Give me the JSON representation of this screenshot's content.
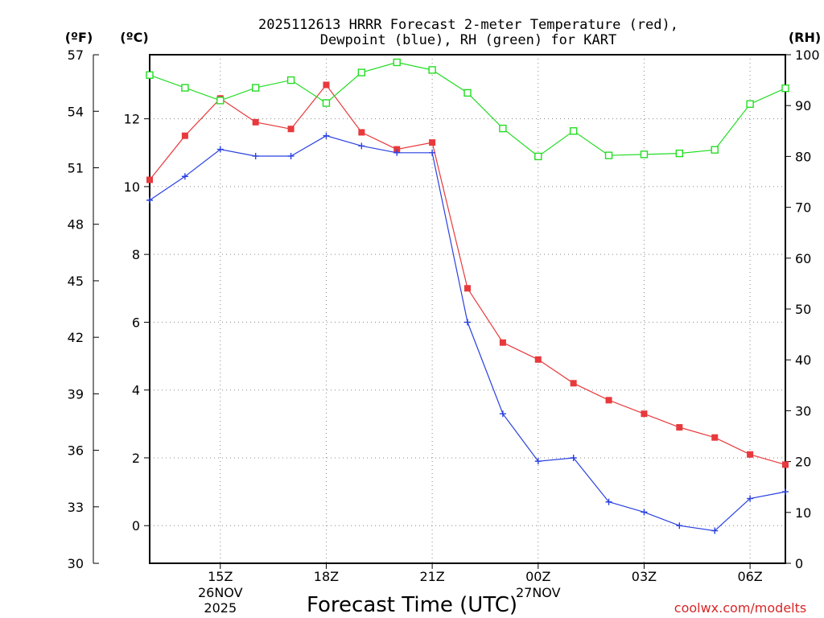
{
  "chart_data": {
    "type": "line",
    "title_line1": "2025112613 HRRR Forecast 2-meter Temperature (red),",
    "title_line2": "Dewpoint (blue), RH (green) for KART",
    "xlabel": "Forecast Time (UTC)",
    "credit": "coolwx.com/modelts",
    "units": {
      "fahrenheit": "(ºF)",
      "celsius": "(ºC)",
      "rh": "(RH)"
    },
    "x_hours": [
      13,
      14,
      15,
      16,
      17,
      18,
      19,
      20,
      21,
      22,
      23,
      24,
      25,
      26,
      27,
      28,
      29,
      30,
      31
    ],
    "x_range": [
      13,
      31
    ],
    "x_ticks": [
      {
        "hour": 15,
        "label": "15Z",
        "sub1": "26NOV",
        "sub2": "2025"
      },
      {
        "hour": 18,
        "label": "18Z",
        "sub1": "",
        "sub2": ""
      },
      {
        "hour": 21,
        "label": "21Z",
        "sub1": "",
        "sub2": ""
      },
      {
        "hour": 24,
        "label": "00Z",
        "sub1": "27NOV",
        "sub2": ""
      },
      {
        "hour": 27,
        "label": "03Z",
        "sub1": "",
        "sub2": ""
      },
      {
        "hour": 30,
        "label": "06Z",
        "sub1": "",
        "sub2": ""
      }
    ],
    "y_celsius_range": [
      -1.11,
      13.89
    ],
    "y_celsius_ticks": [
      "0",
      "2",
      "4",
      "6",
      "8",
      "10",
      "12"
    ],
    "y_fahrenheit_ticks": [
      "30",
      "33",
      "36",
      "39",
      "42",
      "45",
      "48",
      "51",
      "54",
      "57"
    ],
    "y_rh_range": [
      0,
      100
    ],
    "y_rh_ticks": [
      "0",
      "10",
      "20",
      "30",
      "40",
      "50",
      "60",
      "70",
      "80",
      "90",
      "100"
    ],
    "series": [
      {
        "name": "Temperature",
        "color": "#e8393c",
        "unit": "C",
        "marker": "filled-square",
        "values": [
          10.2,
          11.5,
          12.6,
          11.9,
          11.7,
          13.0,
          11.6,
          11.1,
          11.3,
          7.0,
          5.4,
          4.9,
          4.2,
          3.7,
          3.3,
          2.9,
          2.6,
          2.1,
          1.8
        ]
      },
      {
        "name": "Dewpoint",
        "color": "#2940e0",
        "unit": "C",
        "marker": "plus",
        "values": [
          9.6,
          10.3,
          11.1,
          10.9,
          10.9,
          11.5,
          11.2,
          11.0,
          11.0,
          6.0,
          3.3,
          1.9,
          2.0,
          0.7,
          0.4,
          0.0,
          -0.15,
          0.8,
          1.0
        ]
      },
      {
        "name": "RH",
        "color": "#22dd22",
        "unit": "%",
        "marker": "open-square",
        "values": [
          96,
          93.5,
          91,
          93.5,
          95,
          90.5,
          96.5,
          98.5,
          97,
          92.5,
          85.5,
          80,
          85,
          80.2,
          80.4,
          80.6,
          81.3,
          90.3,
          93.4
        ]
      }
    ]
  }
}
